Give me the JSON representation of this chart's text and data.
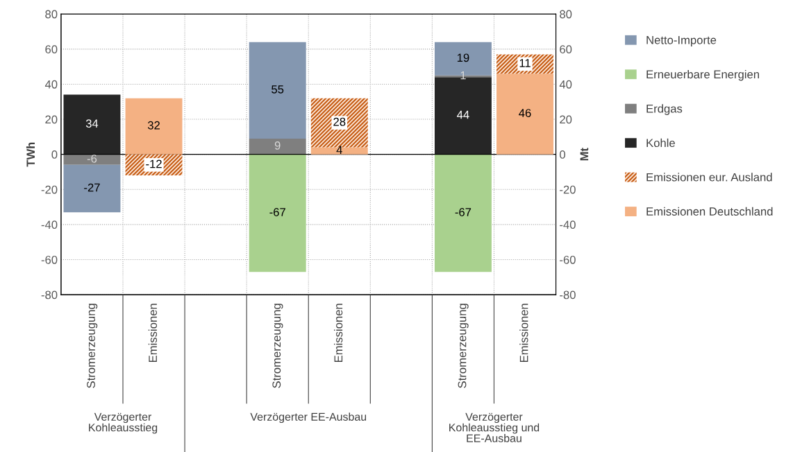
{
  "chart_data": {
    "type": "bar",
    "stacked": true,
    "data_labels": true,
    "grid": true,
    "legend": "right",
    "ylabel": "TWh",
    "y2label": "Mt",
    "categories": [
      "Stromerzeugung",
      "Emissionen",
      null,
      "Stromerzeugung",
      "Emissionen",
      null,
      "Stromerzeugung",
      "Emissionen"
    ],
    "annotations": [
      "Verzögerter\nKohleausstieg",
      "Verzögerter EE-Ausbau",
      "Verzögerter\nKohleausstieg und\nEE-Ausbau"
    ],
    "ylim": [
      -80,
      80
    ],
    "yticks": [
      -80,
      -60,
      -40,
      -20,
      0,
      20,
      40,
      60,
      80
    ],
    "y2lim": [
      -80,
      80
    ],
    "y2ticks": [
      -80,
      -60,
      -40,
      -20,
      0,
      20,
      40,
      60,
      80
    ],
    "series": [
      {
        "name": "Emissionen Deutschland",
        "color": "#f4b183",
        "axis": "y2",
        "values": [
          null,
          32,
          null,
          null,
          4,
          null,
          null,
          46
        ]
      },
      {
        "name": "Emissionen eur. Ausland",
        "color": "#c55a11",
        "axis": "y2",
        "values": [
          null,
          -12,
          null,
          null,
          28,
          null,
          null,
          11
        ]
      },
      {
        "name": "Kohle",
        "color": "#262626",
        "values": [
          34,
          null,
          null,
          null,
          null,
          null,
          44,
          null
        ]
      },
      {
        "name": "Erdgas",
        "color": "#7f7f7f",
        "values": [
          -6,
          null,
          null,
          9,
          null,
          null,
          1,
          null
        ]
      },
      {
        "name": "Erneuerbare Energien",
        "color": "#a9d18e",
        "values": [
          null,
          null,
          null,
          -67,
          null,
          null,
          -67,
          null
        ]
      },
      {
        "name": "Netto-Importe",
        "color": "#8497b0",
        "values": [
          -27,
          null,
          null,
          55,
          null,
          null,
          19,
          null
        ]
      }
    ]
  }
}
